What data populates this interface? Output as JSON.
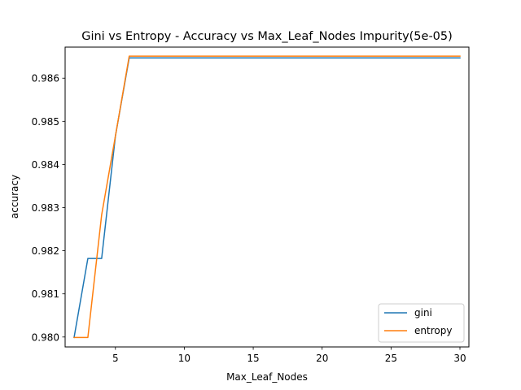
{
  "chart_data": {
    "type": "line",
    "title": "Gini vs Entropy - Accuracy vs Max_Leaf_Nodes Impurity(5e-05)",
    "xlabel": "Max_Leaf_Nodes",
    "ylabel": "accuracy",
    "xlim": [
      1.35,
      30.65
    ],
    "ylim": [
      0.97977,
      0.98672
    ],
    "xticks": [
      5,
      10,
      15,
      20,
      25,
      30
    ],
    "xtick_labels": [
      "5",
      "10",
      "15",
      "20",
      "25",
      "30"
    ],
    "yticks": [
      0.98,
      0.981,
      0.982,
      0.983,
      0.984,
      0.985,
      0.986
    ],
    "ytick_labels": [
      "0.980",
      "0.981",
      "0.982",
      "0.983",
      "0.984",
      "0.985",
      "0.986"
    ],
    "grid": false,
    "legend_position": "lower-right",
    "x": [
      2,
      3,
      4,
      5,
      6,
      7,
      8,
      9,
      10,
      11,
      12,
      13,
      14,
      15,
      16,
      17,
      18,
      19,
      20,
      21,
      22,
      23,
      24,
      25,
      26,
      27,
      28,
      29,
      30
    ],
    "series": [
      {
        "name": "gini",
        "color": "#1f77b4",
        "values": [
          0.97999,
          0.98182,
          0.98182,
          0.98466,
          0.98647,
          0.98647,
          0.98647,
          0.98647,
          0.98647,
          0.98647,
          0.98647,
          0.98647,
          0.98647,
          0.98647,
          0.98647,
          0.98647,
          0.98647,
          0.98647,
          0.98647,
          0.98647,
          0.98647,
          0.98647,
          0.98647,
          0.98647,
          0.98647,
          0.98647,
          0.98647,
          0.98647,
          0.98647
        ]
      },
      {
        "name": "entropy",
        "color": "#ff7f0e",
        "values": [
          0.97999,
          0.97999,
          0.98283,
          0.98466,
          0.98651,
          0.98651,
          0.98651,
          0.98651,
          0.98651,
          0.98651,
          0.98651,
          0.98651,
          0.98651,
          0.98651,
          0.98651,
          0.98651,
          0.98651,
          0.98651,
          0.98651,
          0.98651,
          0.98651,
          0.98651,
          0.98651,
          0.98651,
          0.98651,
          0.98651,
          0.98651,
          0.98651,
          0.98651
        ]
      }
    ]
  }
}
